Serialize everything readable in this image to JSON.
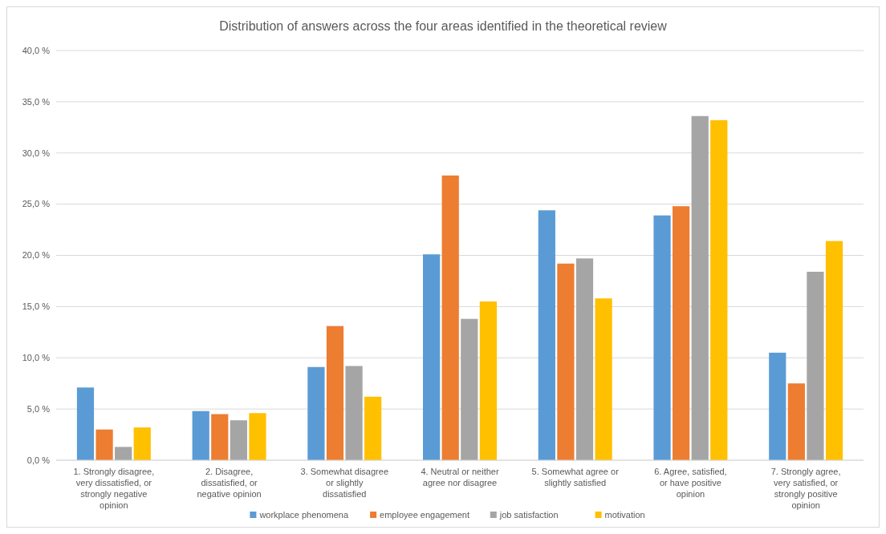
{
  "chart_data": {
    "type": "bar",
    "title": "Distribution of answers across the four areas identified in the theoretical review",
    "categories": [
      "1. Strongly disagree, very dissatisfied, or strongly negative opinion",
      "2. Disagree, dissatisfied, or negative opinion",
      "3. Somewhat disagree or slightly dissatisfied",
      "4. Neutral or neither agree nor disagree",
      "5. Somewhat agree or slightly satisfied",
      "6. Agree, satisfied, or have positive opinion",
      "7. Strongly agree, very satisfied, or strongly positive opinion"
    ],
    "series": [
      {
        "name": "workplace phenomena",
        "color": "#5b9bd5",
        "values": [
          7.1,
          4.8,
          9.1,
          20.1,
          24.4,
          23.9,
          10.5
        ]
      },
      {
        "name": "employee engagement",
        "color": "#ed7d31",
        "values": [
          3.0,
          4.5,
          13.1,
          27.8,
          19.2,
          24.8,
          7.5
        ]
      },
      {
        "name": "job satisfaction",
        "color": "#a5a5a5",
        "values": [
          1.3,
          3.9,
          9.2,
          13.8,
          19.7,
          33.6,
          18.4
        ]
      },
      {
        "name": "motivation",
        "color": "#ffc000",
        "values": [
          3.2,
          4.6,
          6.2,
          15.5,
          15.8,
          33.2,
          21.4
        ]
      }
    ],
    "ylim": [
      0,
      40
    ],
    "yticks": [
      {
        "value": 0,
        "label": "0,0 %"
      },
      {
        "value": 5,
        "label": "5,0 %"
      },
      {
        "value": 10,
        "label": "10,0 %"
      },
      {
        "value": 15,
        "label": "15,0 %"
      },
      {
        "value": 20,
        "label": "20,0 %"
      },
      {
        "value": 25,
        "label": "25,0 %"
      },
      {
        "value": 30,
        "label": "30,0 %"
      },
      {
        "value": 35,
        "label": "35,0 %"
      },
      {
        "value": 40,
        "label": "40,0 %"
      }
    ],
    "grid": "y",
    "legend": "bottom"
  }
}
